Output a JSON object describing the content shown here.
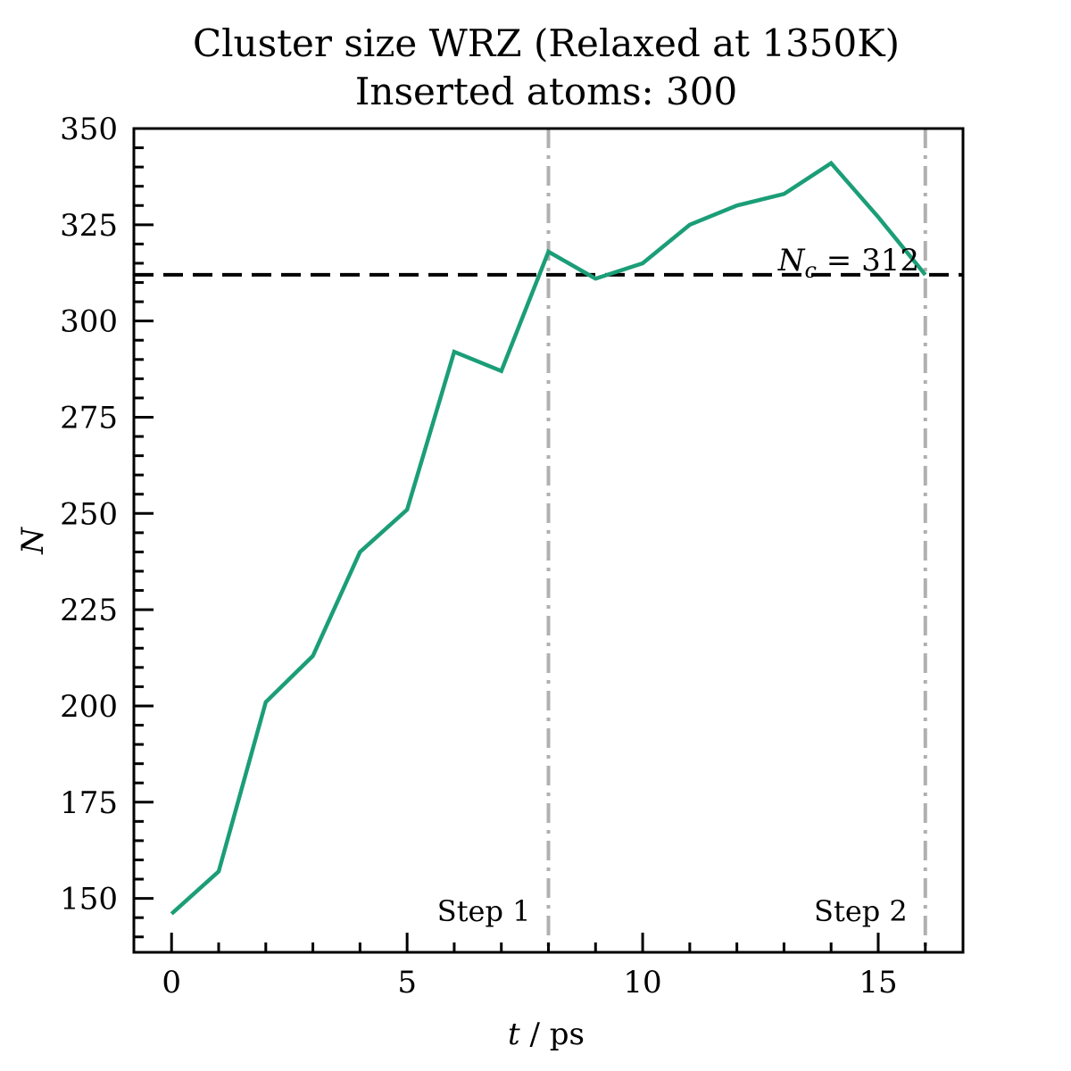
{
  "chart_data": {
    "type": "line",
    "title_line1": "Cluster size WRZ (Relaxed at 1350K)",
    "title_line2": "Inserted atoms: 300",
    "xlabel_var": "t",
    "xlabel_unit": " / ps",
    "ylabel": "N",
    "xlim": [
      -0.8,
      16.8
    ],
    "ylim": [
      136,
      350
    ],
    "xticks": [
      0,
      5,
      10,
      15
    ],
    "yticks": [
      150,
      175,
      200,
      225,
      250,
      275,
      300,
      325,
      350
    ],
    "grid": false,
    "series": [
      {
        "color": "#1b9e77",
        "x": [
          0,
          1,
          2,
          3,
          4,
          5,
          6,
          7,
          8,
          9,
          10,
          11,
          12,
          13,
          14,
          15,
          16
        ],
        "y": [
          146,
          157,
          201,
          213,
          240,
          251,
          292,
          287,
          318,
          311,
          315,
          325,
          330,
          333,
          341,
          327,
          312
        ]
      }
    ],
    "hline": {
      "y": 312,
      "color": "#000000",
      "label_var": "N",
      "label_sub": "c",
      "label_rest": " = 312"
    },
    "vlines": [
      {
        "x": 8,
        "color": "#b0b0b0",
        "label": "Step 1"
      },
      {
        "x": 16,
        "color": "#b0b0b0",
        "label": "Step 2"
      }
    ]
  }
}
